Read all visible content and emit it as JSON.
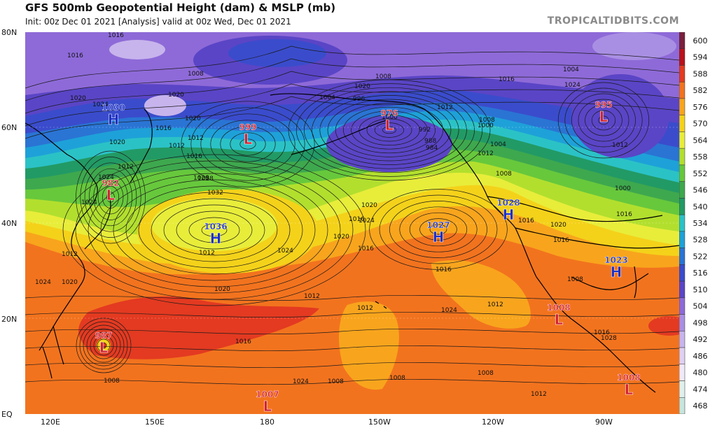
{
  "header": {
    "title": "GFS 500mb Geopotential Height (dam) & MSLP (mb)",
    "subtitle": "Init: 00z Dec 01 2021  [Analysis]   valid at 00z Wed, Dec 01 2021",
    "watermark": "TROPICALTIDBITS.COM"
  },
  "axes": {
    "lat_labels": [
      "80N",
      "60N",
      "40N",
      "20N",
      "EQ"
    ],
    "lon_labels": [
      "120E",
      "150E",
      "180",
      "150W",
      "120W",
      "90W"
    ]
  },
  "colorbar": {
    "levels": [
      "600",
      "594",
      "588",
      "582",
      "576",
      "570",
      "564",
      "558",
      "552",
      "546",
      "540",
      "534",
      "528",
      "522",
      "516",
      "510",
      "504",
      "498",
      "492",
      "486",
      "480",
      "474",
      "468"
    ],
    "colors": [
      "#7a1f3d",
      "#b8121b",
      "#e33a21",
      "#f2731e",
      "#f8a51d",
      "#f4d21a",
      "#e8ed3a",
      "#b2df2e",
      "#67c83c",
      "#3ea84e",
      "#229a65",
      "#2bc2c6",
      "#1ea1d8",
      "#2a74d4",
      "#3a4ccc",
      "#5a45c6",
      "#8e6ad8",
      "#a98fe3",
      "#c7b4ec",
      "#e0d1f3",
      "#f0e9f8",
      "#dff0ec",
      "#c7e6dd"
    ]
  },
  "systems": [
    {
      "type": "H",
      "value": "1030",
      "color": "#1b2fc4"
    },
    {
      "type": "L",
      "value": "999",
      "color": "#d2202e"
    },
    {
      "type": "L",
      "value": "976",
      "color": "#d2202e"
    },
    {
      "type": "L",
      "value": "995",
      "color": "#d2202e"
    },
    {
      "type": "L",
      "value": "982",
      "color": "#d2202e"
    },
    {
      "type": "H",
      "value": "1036",
      "color": "#1b2fc4"
    },
    {
      "type": "H",
      "value": "1027",
      "color": "#1b2fc4"
    },
    {
      "type": "H",
      "value": "1028",
      "color": "#1b2fc4"
    },
    {
      "type": "H",
      "value": "1023",
      "color": "#1b2fc4"
    },
    {
      "type": "L",
      "value": "1008",
      "color": "#d2202e"
    },
    {
      "type": "L",
      "value": "987",
      "color": "#d2202e"
    },
    {
      "type": "L",
      "value": "1007",
      "color": "#d2202e"
    },
    {
      "type": "L",
      "value": "1008",
      "color": "#d2202e"
    }
  ],
  "isobar_labels": [
    "1016",
    "1016",
    "1020",
    "1024",
    "1020",
    "1008",
    "1016",
    "1020",
    "1012",
    "1016",
    "1012",
    "1020",
    "1008",
    "1004",
    "996",
    "1000",
    "992",
    "988",
    "984",
    "1012",
    "1008",
    "1000",
    "1004",
    "1012",
    "1008",
    "1004",
    "1024",
    "1016",
    "1012",
    "1000",
    "1020",
    "1012",
    "1024",
    "1028",
    "1032",
    "1028",
    "1024",
    "1020",
    "1016",
    "1016",
    "1020",
    "1024",
    "1012",
    "1020",
    "1012",
    "1016",
    "1012",
    "1012",
    "1008",
    "1008",
    "1012",
    "1008",
    "1008",
    "1024",
    "1024",
    "1016",
    "1016",
    "1020",
    "1016",
    "1008",
    "1016",
    "1016",
    "1028",
    "1024",
    "1020",
    "1012",
    "1024",
    "1004",
    "1008"
  ]
}
